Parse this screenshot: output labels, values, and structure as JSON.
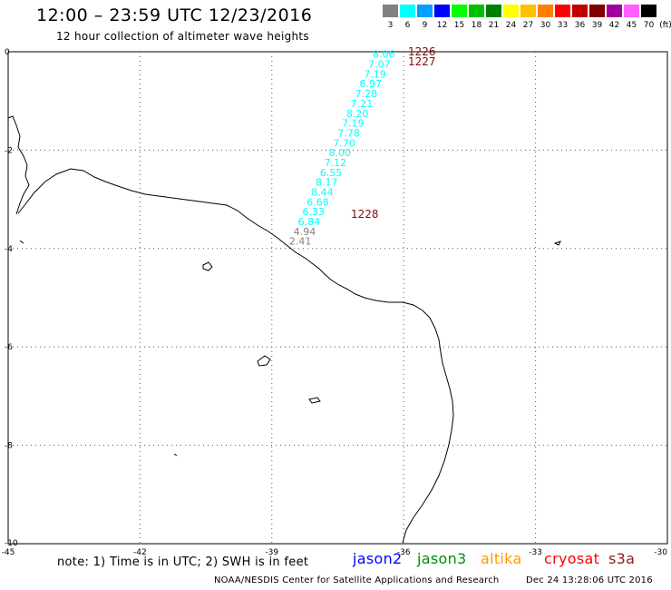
{
  "header": {
    "title": "12:00 – 23:59 UTC 12/23/2016",
    "subtitle": "12 hour collection of altimeter wave heights"
  },
  "legend": {
    "unit": "(ft)",
    "levels": [
      {
        "label": "3",
        "color": "#808080"
      },
      {
        "label": "6",
        "color": "#00ffff"
      },
      {
        "label": "9",
        "color": "#00a0ff"
      },
      {
        "label": "12",
        "color": "#0000ff"
      },
      {
        "label": "15",
        "color": "#00ff00"
      },
      {
        "label": "18",
        "color": "#00c000"
      },
      {
        "label": "21",
        "color": "#008000"
      },
      {
        "label": "24",
        "color": "#ffff00"
      },
      {
        "label": "27",
        "color": "#ffc000"
      },
      {
        "label": "30",
        "color": "#ff8000"
      },
      {
        "label": "33",
        "color": "#ff0000"
      },
      {
        "label": "36",
        "color": "#c00000"
      },
      {
        "label": "39",
        "color": "#800000"
      },
      {
        "label": "42",
        "color": "#a000a0"
      },
      {
        "label": "45",
        "color": "#ff60ff"
      },
      {
        "label": "70",
        "color": "#000000"
      }
    ]
  },
  "map": {
    "lon_ticks": [
      -45,
      -42,
      -39,
      -36,
      -33,
      -30
    ],
    "lat_ticks": [
      0,
      -2,
      -4,
      -6,
      -8,
      -10
    ],
    "lon_range": [
      -45,
      -30
    ],
    "lat_range": [
      -10,
      0
    ],
    "grid": "dotted",
    "coastline_color": "#000000"
  },
  "chart_data": {
    "type": "scatter",
    "track": [
      {
        "lon": -36.2,
        "lat": -0.05,
        "swh": "8.06"
      },
      {
        "lon": -36.3,
        "lat": -0.25,
        "swh": "7.07"
      },
      {
        "lon": -36.4,
        "lat": -0.45,
        "swh": "7.19"
      },
      {
        "lon": -36.5,
        "lat": -0.65,
        "swh": "6.97"
      },
      {
        "lon": -36.6,
        "lat": -0.85,
        "swh": "7.28"
      },
      {
        "lon": -36.7,
        "lat": -1.05,
        "swh": "7.21"
      },
      {
        "lon": -36.8,
        "lat": -1.25,
        "swh": "8.20"
      },
      {
        "lon": -36.9,
        "lat": -1.45,
        "swh": "7.19"
      },
      {
        "lon": -37.0,
        "lat": -1.65,
        "swh": "7.78"
      },
      {
        "lon": -37.1,
        "lat": -1.85,
        "swh": "7.70"
      },
      {
        "lon": -37.2,
        "lat": -2.05,
        "swh": "8.00"
      },
      {
        "lon": -37.3,
        "lat": -2.25,
        "swh": "7.12"
      },
      {
        "lon": -37.4,
        "lat": -2.45,
        "swh": "6.55"
      },
      {
        "lon": -37.5,
        "lat": -2.65,
        "swh": "8.17"
      },
      {
        "lon": -37.6,
        "lat": -2.85,
        "swh": "8.44"
      },
      {
        "lon": -37.7,
        "lat": -3.05,
        "swh": "6.68"
      },
      {
        "lon": -37.8,
        "lat": -3.25,
        "swh": "6.33"
      },
      {
        "lon": -37.9,
        "lat": -3.45,
        "swh": "6.84"
      },
      {
        "lon": -38.0,
        "lat": -3.65,
        "swh": "4.94"
      },
      {
        "lon": -38.1,
        "lat": -3.85,
        "swh": "2.41"
      }
    ],
    "times": [
      {
        "label": "1226",
        "lon": -35.9,
        "lat": 0.0
      },
      {
        "label": "1227",
        "lon": -35.9,
        "lat": -0.2
      },
      {
        "label": "1228",
        "lon": -37.2,
        "lat": -3.3
      }
    ]
  },
  "footer": {
    "note": "note: 1) Time is in UTC; 2) SWH is in feet",
    "satellites": [
      {
        "name": "jason2",
        "color": "#0000ff"
      },
      {
        "name": "jason3",
        "color": "#009000"
      },
      {
        "name": "altika",
        "color": "#ff9900"
      },
      {
        "name": "cryosat",
        "color": "#ff0000"
      },
      {
        "name": "s3a",
        "color": "#8b1a1a"
      }
    ],
    "credit": "NOAA/NESDIS Center for Satellite Applications and Research",
    "timestamp": "Dec 24 13:28:06 UTC 2016"
  }
}
